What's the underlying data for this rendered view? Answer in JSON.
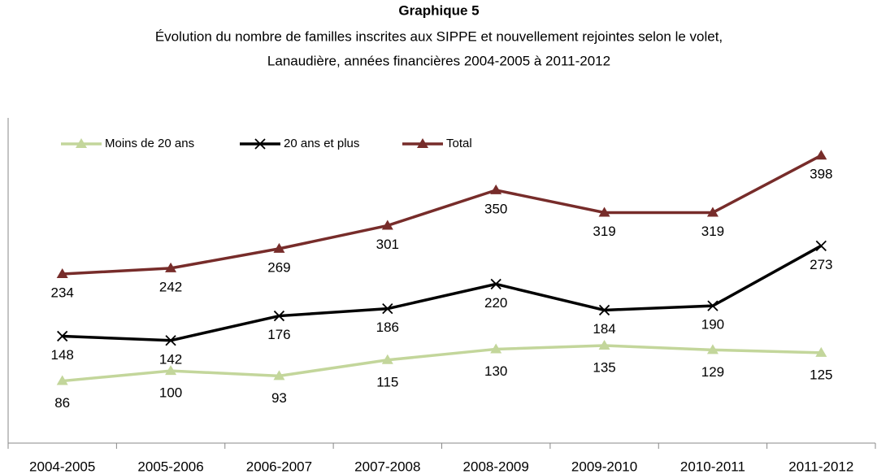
{
  "chart_data": {
    "type": "line",
    "title": "Graphique 5",
    "subtitle": [
      "Évolution du nombre de familles inscrites aux SIPPE et nouvellement rejointes selon le volet,",
      "Lanaudière, années financières 2004-2005 à 2011-2012"
    ],
    "categories": [
      "2004-2005",
      "2005-2006",
      "2006-2007",
      "2007-2008",
      "2008-2009",
      "2009-2010",
      "2010-2011",
      "2011-2012"
    ],
    "series": [
      {
        "name": "Moins de 20 ans",
        "color": "#c3d69b",
        "marker": "triangle",
        "values": [
          86,
          100,
          93,
          115,
          130,
          135,
          129,
          125
        ]
      },
      {
        "name": "20 ans et plus",
        "color": "#000000",
        "marker": "x",
        "values": [
          148,
          142,
          176,
          186,
          220,
          184,
          190,
          273
        ]
      },
      {
        "name": "Total",
        "color": "#772c2a",
        "marker": "triangle",
        "values": [
          234,
          242,
          269,
          301,
          350,
          319,
          319,
          398
        ]
      }
    ],
    "ylim": [
      0,
      450
    ],
    "legend": "top-left"
  }
}
